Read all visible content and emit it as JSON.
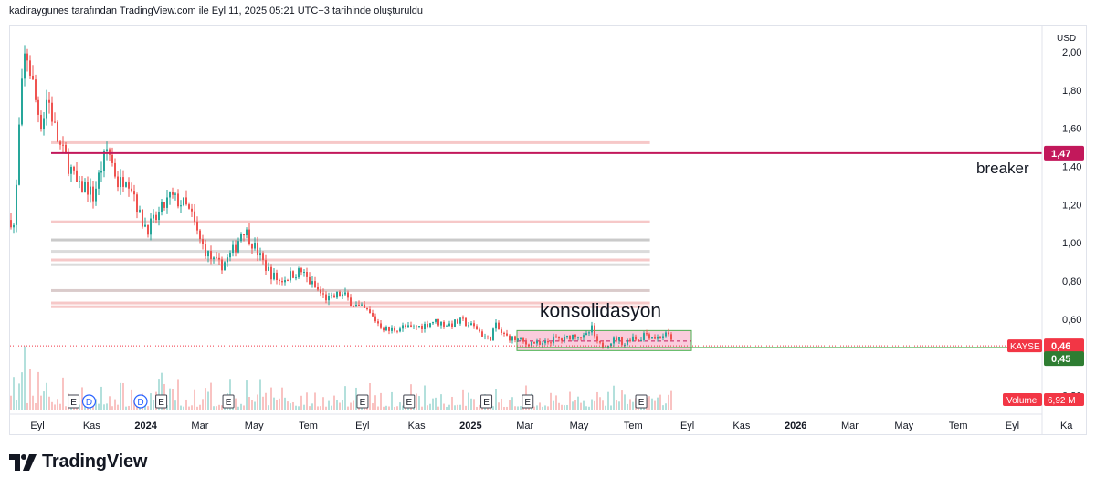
{
  "header": {
    "caption": "kadiraygunes tarafından TradingView.com ile Eyl 11, 2025 05:21 UTC+3 tarihinde oluşturuldu"
  },
  "brand": {
    "name": "TradingView",
    "icon": "tradingview-logo-icon"
  },
  "colors": {
    "up": "#26a69a",
    "down": "#ef5350",
    "breaker_line": "#c2185b",
    "support_line": "#4caf50",
    "price_badge": "#f23645",
    "zone_fill": "#f8bbd0"
  },
  "chart_data": {
    "type": "candlestick",
    "symbol": "KAYSE",
    "currency": "USD",
    "y_axis": {
      "min": 0.14,
      "max": 2.12,
      "ticks": [
        "2,00",
        "1,80",
        "1,60",
        "1,40",
        "1,20",
        "1,00",
        "0,80",
        "0,60",
        "0,20"
      ],
      "tick_values": [
        2.0,
        1.8,
        1.6,
        1.4,
        1.2,
        1.0,
        0.8,
        0.6,
        0.2
      ]
    },
    "x_axis": {
      "labels": [
        "Eyl",
        "Kas",
        "2024",
        "Mar",
        "May",
        "Tem",
        "Eyl",
        "Kas",
        "2025",
        "Mar",
        "May",
        "Tem",
        "Eyl",
        "Kas",
        "2026",
        "Mar",
        "May",
        "Tem",
        "Eyl",
        "Ka"
      ],
      "bold": [
        "2024",
        "2025",
        "2026"
      ]
    },
    "price_path": [
      [
        0,
        1.12
      ],
      [
        4,
        1.08
      ],
      [
        10,
        1.7
      ],
      [
        16,
        2.02
      ],
      [
        22,
        1.88
      ],
      [
        28,
        1.72
      ],
      [
        34,
        1.62
      ],
      [
        40,
        1.78
      ],
      [
        46,
        1.64
      ],
      [
        52,
        1.52
      ],
      [
        58,
        1.46
      ],
      [
        66,
        1.38
      ],
      [
        74,
        1.28
      ],
      [
        82,
        1.3
      ],
      [
        90,
        1.24
      ],
      [
        98,
        1.38
      ],
      [
        106,
        1.5
      ],
      [
        112,
        1.4
      ],
      [
        118,
        1.3
      ],
      [
        126,
        1.36
      ],
      [
        134,
        1.28
      ],
      [
        142,
        1.12
      ],
      [
        150,
        1.08
      ],
      [
        158,
        1.12
      ],
      [
        166,
        1.18
      ],
      [
        174,
        1.24
      ],
      [
        182,
        1.22
      ],
      [
        190,
        1.2
      ],
      [
        198,
        1.14
      ],
      [
        206,
        1.02
      ],
      [
        214,
        0.95
      ],
      [
        222,
        0.9
      ],
      [
        230,
        0.88
      ],
      [
        238,
        0.92
      ],
      [
        246,
        0.98
      ],
      [
        254,
        1.08
      ],
      [
        262,
        1.02
      ],
      [
        270,
        0.95
      ],
      [
        278,
        0.88
      ],
      [
        286,
        0.83
      ],
      [
        294,
        0.8
      ],
      [
        302,
        0.82
      ],
      [
        310,
        0.84
      ],
      [
        318,
        0.85
      ],
      [
        326,
        0.8
      ],
      [
        334,
        0.76
      ],
      [
        342,
        0.72
      ],
      [
        350,
        0.7
      ],
      [
        358,
        0.73
      ],
      [
        366,
        0.72
      ],
      [
        374,
        0.68
      ],
      [
        382,
        0.66
      ],
      [
        390,
        0.64
      ],
      [
        398,
        0.6
      ],
      [
        406,
        0.56
      ],
      [
        414,
        0.54
      ],
      [
        422,
        0.55
      ],
      [
        430,
        0.56
      ],
      [
        438,
        0.55
      ],
      [
        446,
        0.56
      ],
      [
        454,
        0.57
      ],
      [
        462,
        0.59
      ],
      [
        470,
        0.58
      ],
      [
        478,
        0.57
      ],
      [
        486,
        0.58
      ],
      [
        494,
        0.59
      ],
      [
        502,
        0.57
      ],
      [
        510,
        0.55
      ],
      [
        518,
        0.51
      ],
      [
        524,
        0.49
      ],
      [
        530,
        0.57
      ],
      [
        536,
        0.53
      ],
      [
        542,
        0.51
      ],
      [
        548,
        0.5
      ],
      [
        556,
        0.49
      ],
      [
        564,
        0.47
      ],
      [
        572,
        0.48
      ],
      [
        580,
        0.46
      ],
      [
        588,
        0.48
      ],
      [
        596,
        0.5
      ],
      [
        604,
        0.49
      ],
      [
        612,
        0.51
      ],
      [
        620,
        0.52
      ],
      [
        628,
        0.5
      ],
      [
        636,
        0.55
      ],
      [
        642,
        0.47
      ],
      [
        648,
        0.46
      ],
      [
        656,
        0.48
      ],
      [
        664,
        0.5
      ],
      [
        672,
        0.47
      ],
      [
        680,
        0.51
      ],
      [
        688,
        0.49
      ],
      [
        694,
        0.53
      ],
      [
        700,
        0.51
      ],
      [
        708,
        0.5
      ],
      [
        716,
        0.52
      ],
      [
        724,
        0.5
      ]
    ],
    "levels": [
      {
        "price": 1.525,
        "color": "#ef9a9a",
        "x_end": 0.62
      },
      {
        "price": 1.11,
        "color": "#ef9a9a",
        "x_end": 0.62
      },
      {
        "price": 1.015,
        "color": "#9e9e9e",
        "x_end": 0.62
      },
      {
        "price": 0.955,
        "color": "#bdbdbd",
        "x_end": 0.62
      },
      {
        "price": 0.91,
        "color": "#ef9a9a",
        "x_end": 0.62
      },
      {
        "price": 0.885,
        "color": "#bdbdbd",
        "x_end": 0.62
      },
      {
        "price": 0.75,
        "color": "#bca0a0",
        "x_end": 0.62
      },
      {
        "price": 0.685,
        "color": "#ef9a9a",
        "x_end": 0.62
      },
      {
        "price": 0.665,
        "color": "#ef9a9a",
        "x_end": 0.62
      }
    ],
    "breaker": {
      "price": 1.47,
      "label": "breaker",
      "badge": "1,47"
    },
    "consolidation": {
      "label": "konsolidasyon",
      "top": 0.54,
      "bottom": 0.435
    },
    "current_price": {
      "symbol": "KAYSE",
      "value": "0,46",
      "price": 0.46
    },
    "support": {
      "value": "0,45",
      "price": 0.45
    },
    "volume": {
      "label": "Volume",
      "value": "6,92 M"
    },
    "events": [
      {
        "type": "E",
        "pos": 0.035
      },
      {
        "type": "D",
        "pos": 0.05
      },
      {
        "type": "D",
        "pos": 0.1
      },
      {
        "type": "E",
        "pos": 0.12
      },
      {
        "type": "E",
        "pos": 0.185
      },
      {
        "type": "E",
        "pos": 0.315
      },
      {
        "type": "E",
        "pos": 0.36
      },
      {
        "type": "E",
        "pos": 0.435
      },
      {
        "type": "E",
        "pos": 0.475
      },
      {
        "type": "E",
        "pos": 0.585
      }
    ]
  }
}
